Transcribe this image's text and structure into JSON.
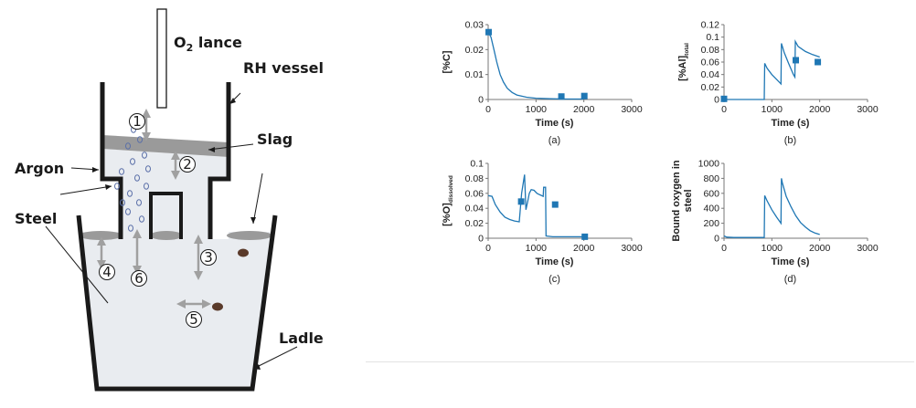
{
  "diagram": {
    "labels": {
      "lance": "O",
      "lance_sub": "2",
      "lance_suffix": " lance",
      "vessel": "RH vessel",
      "slag": "Slag",
      "argon": "Argon",
      "steel": "Steel",
      "ladle": "Ladle"
    },
    "markers": [
      "1",
      "2",
      "3",
      "4",
      "5",
      "6"
    ],
    "colors": {
      "wall": "#1a1a1a",
      "steel": "#e9ecf0",
      "slag": "#9a9a9a",
      "arrow": "#a0a0a0",
      "bubble": "#5a6fa8",
      "inclusion": "#5a3a2a"
    }
  },
  "chart_data": [
    {
      "type": "line",
      "caption": "(a)",
      "ylabel": "[%C]",
      "ylabel_sub": "",
      "xlabel": "Time (s)",
      "xlim": [
        0,
        3000
      ],
      "ylim": [
        0,
        0.03
      ],
      "xticks": [
        0,
        1000,
        2000,
        3000
      ],
      "yticks": [
        0,
        0.01,
        0.02,
        0.03
      ],
      "ytick_labels": [
        "0",
        "0.01",
        "0.02",
        "0.03"
      ],
      "line": {
        "x": [
          0,
          60,
          120,
          180,
          250,
          320,
          400,
          500,
          600,
          800,
          1000,
          1300,
          1600,
          2000
        ],
        "y": [
          0.027,
          0.025,
          0.02,
          0.015,
          0.01,
          0.007,
          0.0045,
          0.0028,
          0.0018,
          0.0009,
          0.0005,
          0.0003,
          0.0002,
          0.0002
        ]
      },
      "points": {
        "x": [
          10,
          1530,
          2010
        ],
        "y": [
          0.027,
          0.0012,
          0.0014
        ]
      },
      "color": "#1f77b4"
    },
    {
      "type": "line",
      "caption": "(b)",
      "ylabel": "[%Al]",
      "ylabel_sub": "total",
      "xlabel": "Time (s)",
      "xlim": [
        0,
        3000
      ],
      "ylim": [
        0,
        0.12
      ],
      "xticks": [
        0,
        1000,
        2000,
        3000
      ],
      "yticks": [
        0,
        0.02,
        0.04,
        0.06,
        0.08,
        0.1,
        0.12
      ],
      "ytick_labels": [
        "0",
        "0.02",
        "0.04",
        "0.06",
        "0.08",
        "0.1",
        "0.12"
      ],
      "line": {
        "x": [
          0,
          840,
          850,
          900,
          1000,
          1100,
          1190,
          1200,
          1260,
          1350,
          1450,
          1480,
          1490,
          1550,
          1700,
          1850,
          2000
        ],
        "y": [
          0,
          0,
          0.058,
          0.05,
          0.04,
          0.032,
          0.025,
          0.09,
          0.075,
          0.058,
          0.04,
          0.036,
          0.093,
          0.085,
          0.077,
          0.072,
          0.068
        ]
      },
      "points": {
        "x": [
          0,
          1500,
          1960
        ],
        "y": [
          0.001,
          0.063,
          0.06
        ]
      },
      "color": "#1f77b4"
    },
    {
      "type": "line",
      "caption": "(c)",
      "ylabel": "[%O]",
      "ylabel_sub": "dissolved",
      "xlabel": "Time (s)",
      "xlim": [
        0,
        3000
      ],
      "ylim": [
        0,
        0.1
      ],
      "xticks": [
        0,
        1000,
        2000,
        3000
      ],
      "yticks": [
        0,
        0.02,
        0.04,
        0.06,
        0.08,
        0.1
      ],
      "ytick_labels": [
        "0",
        "0.02",
        "0.04",
        "0.06",
        "0.08",
        "0.1"
      ],
      "line": {
        "x": [
          0,
          80,
          150,
          250,
          350,
          450,
          550,
          650,
          700,
          760,
          790,
          830,
          860,
          900,
          960,
          1020,
          1080,
          1150,
          1160,
          1200,
          1210,
          1350,
          1500,
          1700,
          2000
        ],
        "y": [
          0.057,
          0.056,
          0.045,
          0.035,
          0.028,
          0.025,
          0.023,
          0.022,
          0.06,
          0.085,
          0.038,
          0.05,
          0.06,
          0.065,
          0.064,
          0.06,
          0.058,
          0.056,
          0.068,
          0.068,
          0.003,
          0.002,
          0.002,
          0.002,
          0.002
        ]
      },
      "points": {
        "x": [
          690,
          1400,
          2020
        ],
        "y": [
          0.049,
          0.045,
          0.002
        ]
      },
      "color": "#1f77b4"
    },
    {
      "type": "line",
      "caption": "(d)",
      "ylabel": "Bound oxygen in",
      "ylabel2": "steel",
      "ylabel_sub": "",
      "xlabel": "Time (s)",
      "xlim": [
        0,
        3000
      ],
      "ylim": [
        0,
        1000
      ],
      "xticks": [
        0,
        1000,
        2000,
        3000
      ],
      "yticks": [
        0,
        200,
        400,
        600,
        800,
        1000
      ],
      "ytick_labels": [
        "0",
        "200",
        "400",
        "600",
        "800",
        "1000"
      ],
      "line": {
        "x": [
          0,
          60,
          200,
          400,
          600,
          840,
          850,
          900,
          1000,
          1100,
          1190,
          1200,
          1220,
          1300,
          1400,
          1500,
          1600,
          1700,
          1800,
          1900,
          2000
        ],
        "y": [
          30,
          15,
          10,
          10,
          10,
          10,
          570,
          500,
          380,
          280,
          200,
          800,
          740,
          560,
          420,
          300,
          210,
          150,
          100,
          70,
          50
        ]
      },
      "points": {
        "x": [],
        "y": []
      },
      "color": "#1f77b4"
    }
  ]
}
